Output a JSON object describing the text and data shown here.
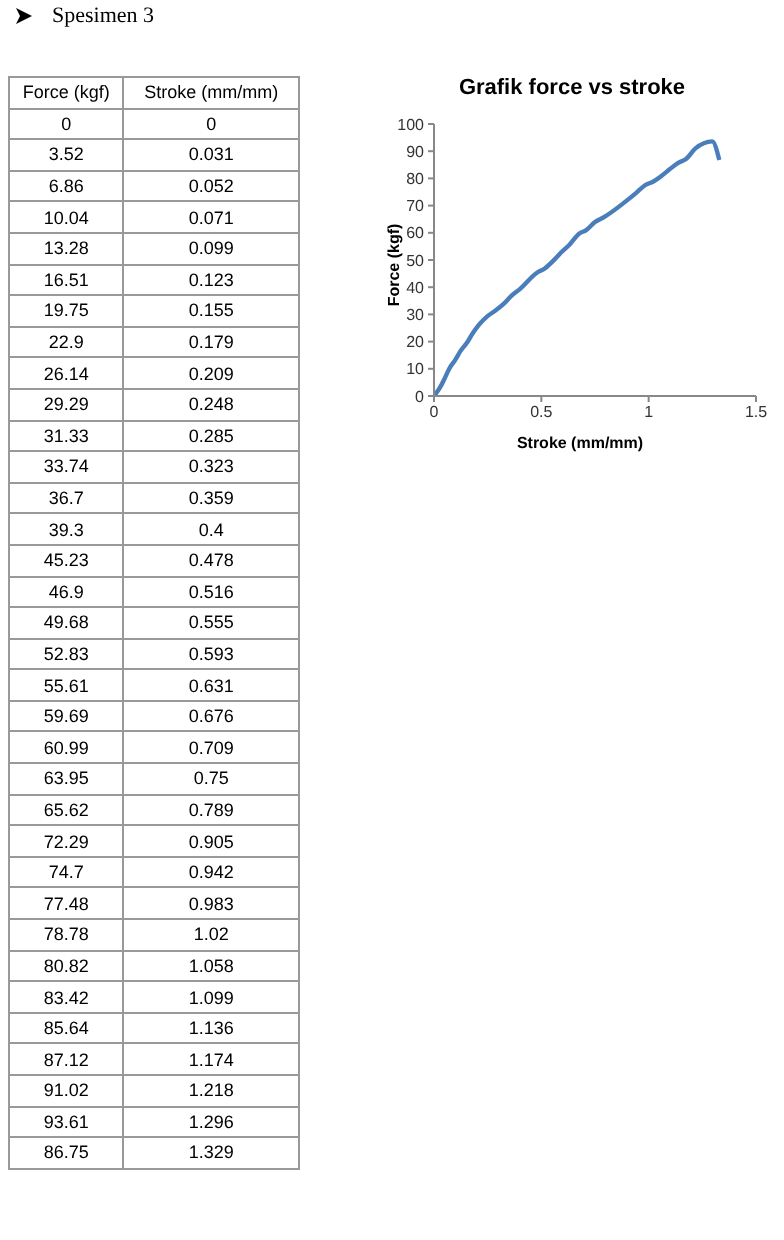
{
  "chart_data": [
    {
      "type": "other",
      "annotations": [
        "Spesimen 3",
        "Force (kgf)",
        "Stroke (mm/mm)",
        "0",
        "0",
        "3.52",
        "0.031",
        "6.86",
        "0.052",
        "10.04",
        "0.071",
        "13.28",
        "0.099",
        "16.51",
        "0.123",
        "19.75",
        "0.155",
        "22.9",
        "0.179",
        "26.14",
        "0.209",
        "29.29",
        "0.248",
        "31.33",
        "0.285",
        "33.74",
        "0.323",
        "36.7",
        "0.359",
        "39.3",
        "0.4",
        "45.23",
        "0.478",
        "46.9",
        "0.516",
        "49.68",
        "0.555",
        "52.83",
        "0.593",
        "55.61",
        "0.631",
        "59.69",
        "0.676",
        "60.99",
        "0.709",
        "63.95",
        "0.75",
        "65.62",
        "0.789",
        "72.29",
        "0.905",
        "74.7",
        "0.942",
        "77.48",
        "0.983",
        "78.78",
        "1.02",
        "80.82",
        "1.058",
        "83.42",
        "1.099",
        "85.64",
        "1.136",
        "87.12",
        "1.174",
        "91.02",
        "1.218",
        "93.61",
        "1.296",
        "86.75",
        "1.329"
      ]
    },
    {
      "type": "line",
      "title": "Grafik force vs stroke",
      "xlabel": "Stroke (mm/mm)",
      "ylabel": "Force (kgf)",
      "x": [
        0,
        0.031,
        0.052,
        0.071,
        0.099,
        0.123,
        0.155,
        0.179,
        0.209,
        0.248,
        0.285,
        0.323,
        0.359,
        0.4,
        0.478,
        0.516,
        0.555,
        0.593,
        0.631,
        0.676,
        0.709,
        0.75,
        0.789,
        0.905,
        0.942,
        0.983,
        1.02,
        1.058,
        1.099,
        1.136,
        1.174,
        1.218,
        1.296,
        1.329
      ],
      "series": [
        {
          "color": "#4a7ebb",
          "values": [
            0,
            3.52,
            6.86,
            10.04,
            13.28,
            16.51,
            19.75,
            22.9,
            26.14,
            29.29,
            31.33,
            33.74,
            36.7,
            39.3,
            45.23,
            46.9,
            49.68,
            52.83,
            55.61,
            59.69,
            60.99,
            63.95,
            65.62,
            72.29,
            74.7,
            77.48,
            78.78,
            80.82,
            83.42,
            85.64,
            87.12,
            91.02,
            93.61,
            86.75
          ]
        }
      ],
      "xlim": [
        0,
        1.5
      ],
      "xticks": [
        0,
        0.5,
        1,
        1.5
      ],
      "ylim": [
        0,
        100
      ],
      "yticks": [
        0,
        10,
        20,
        30,
        40,
        50,
        60,
        70,
        80,
        90,
        100
      ],
      "grid": false,
      "legend": false,
      "marker": "none",
      "line_style": "solid"
    }
  ]
}
